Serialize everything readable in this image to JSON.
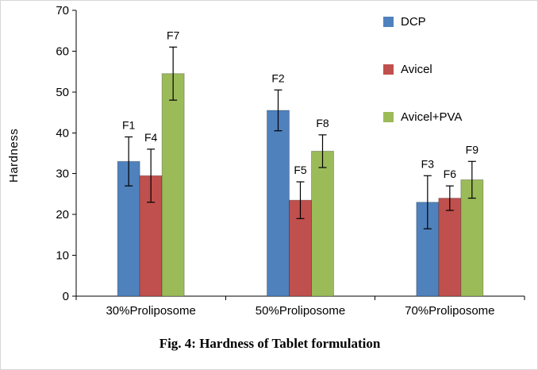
{
  "chart_data": {
    "type": "bar",
    "title": "Fig. 4: Hardness of Tablet formulation",
    "ylabel": "Hardness",
    "xlabel": "",
    "ylim": [
      0,
      70
    ],
    "yticks": [
      0,
      10,
      20,
      30,
      40,
      50,
      60,
      70
    ],
    "grid": false,
    "legend_position": "top-right",
    "categories": [
      "30%Proliposome",
      "50%Proliposome",
      "70%Proliposome"
    ],
    "series": [
      {
        "name": "DCP",
        "color": "#4F81BD",
        "values": [
          33,
          45.5,
          23
        ],
        "errors": [
          6,
          5,
          6.5
        ],
        "bar_labels": [
          "F1",
          "F2",
          "F3"
        ]
      },
      {
        "name": "Avicel",
        "color": "#C0504D",
        "values": [
          29.5,
          23.5,
          24
        ],
        "errors": [
          6.5,
          4.5,
          3
        ],
        "bar_labels": [
          "F4",
          "F5",
          "F6"
        ]
      },
      {
        "name": "Avicel+PVA",
        "color": "#9BBB59",
        "values": [
          54.5,
          35.5,
          28.5
        ],
        "errors": [
          6.5,
          4,
          4.5
        ],
        "bar_labels": [
          "F7",
          "F8",
          "F9"
        ]
      }
    ]
  }
}
